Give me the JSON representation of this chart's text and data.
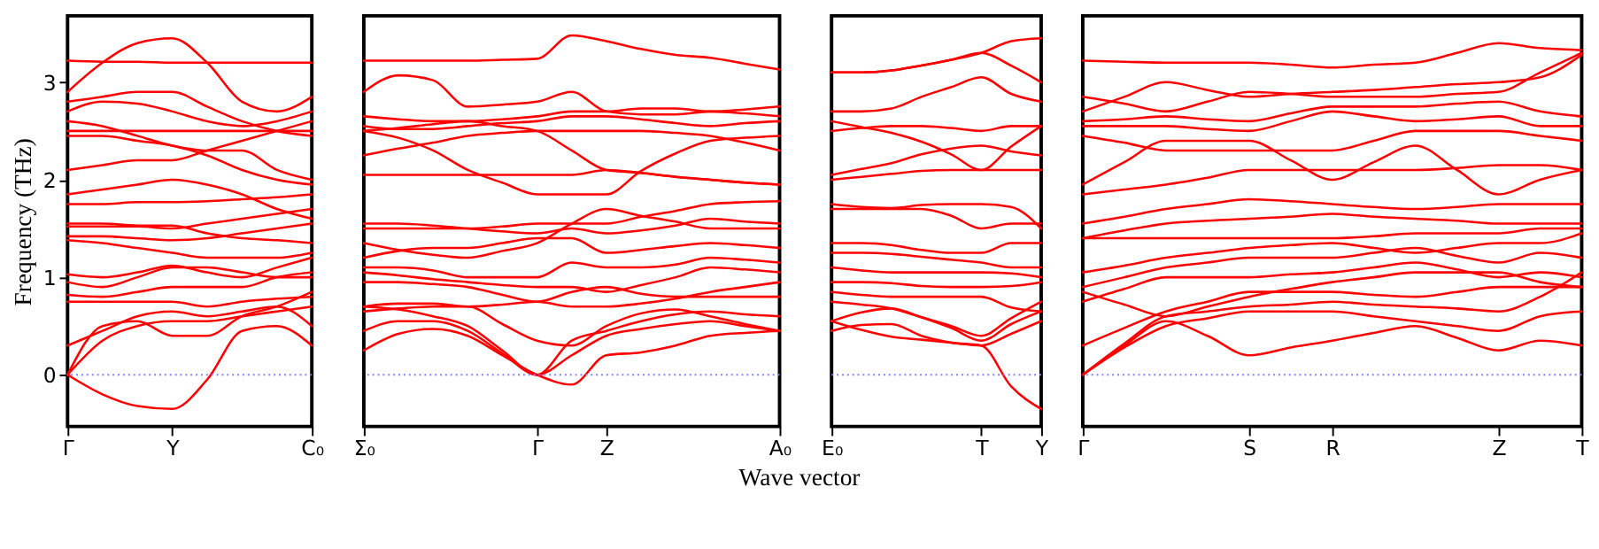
{
  "chart_data": [
    {
      "type": "line",
      "ylabel": "Frequency (THz)",
      "ylim": [
        -0.53,
        3.68
      ],
      "yticks": [
        0,
        1,
        2,
        3
      ],
      "categories": [
        "Γ",
        null,
        null,
        "Y",
        null,
        null,
        null,
        "C₀"
      ],
      "ref_lines": [
        {
          "axis": "y",
          "value": 0,
          "color": "#7f7fff",
          "line_style": "dotted"
        }
      ],
      "series": [
        {
          "color": "#ff0000",
          "values": [
            0,
            -0.2,
            -0.32,
            -0.35,
            -0.05,
            0.45,
            0.5,
            0.3
          ]
        },
        {
          "color": "#ff0000",
          "values": [
            0,
            0.5,
            0.55,
            0.4,
            0.4,
            0.6,
            0.7,
            0.85
          ]
        },
        {
          "color": "#ff0000",
          "values": [
            0,
            0.35,
            0.5,
            0.55,
            0.55,
            0.6,
            0.65,
            0.7
          ]
        },
        {
          "color": "#ff0000",
          "values": [
            0.3,
            0.45,
            0.6,
            0.65,
            0.6,
            0.65,
            0.7,
            0.5
          ]
        },
        {
          "color": "#ff0000",
          "values": [
            0.75,
            0.75,
            0.75,
            0.75,
            0.7,
            0.75,
            0.78,
            0.8
          ]
        },
        {
          "color": "#ff0000",
          "values": [
            0.82,
            0.8,
            0.85,
            0.9,
            0.9,
            0.9,
            1.0,
            1.05
          ]
        },
        {
          "color": "#ff0000",
          "values": [
            0.95,
            0.9,
            1.0,
            1.1,
            1.1,
            1.05,
            1.0,
            1.0
          ]
        },
        {
          "color": "#ff0000",
          "values": [
            1.03,
            1.0,
            1.05,
            1.12,
            1.05,
            1.0,
            1.1,
            1.2
          ]
        },
        {
          "color": "#ff0000",
          "values": [
            1.38,
            1.35,
            1.3,
            1.25,
            1.2,
            1.2,
            1.2,
            1.25
          ]
        },
        {
          "color": "#ff0000",
          "values": [
            1.42,
            1.42,
            1.4,
            1.38,
            1.4,
            1.45,
            1.5,
            1.55
          ]
        },
        {
          "color": "#ff0000",
          "values": [
            1.52,
            1.52,
            1.52,
            1.5,
            1.55,
            1.6,
            1.65,
            1.7
          ]
        },
        {
          "color": "#ff0000",
          "values": [
            1.55,
            1.55,
            1.53,
            1.53,
            1.45,
            1.4,
            1.38,
            1.35
          ]
        },
        {
          "color": "#ff0000",
          "values": [
            1.75,
            1.75,
            1.77,
            1.77,
            1.78,
            1.8,
            1.82,
            1.85
          ]
        },
        {
          "color": "#ff0000",
          "values": [
            1.85,
            1.9,
            1.95,
            2.0,
            1.95,
            1.85,
            1.7,
            1.6
          ]
        },
        {
          "color": "#ff0000",
          "values": [
            2.1,
            2.15,
            2.2,
            2.2,
            2.3,
            2.4,
            2.5,
            2.6
          ]
        },
        {
          "color": "#ff0000",
          "values": [
            2.45,
            2.45,
            2.4,
            2.35,
            2.25,
            2.1,
            2.0,
            1.95
          ]
        },
        {
          "color": "#ff0000",
          "values": [
            2.5,
            2.5,
            2.5,
            2.5,
            2.5,
            2.5,
            2.5,
            2.5
          ]
        },
        {
          "color": "#ff0000",
          "values": [
            2.6,
            2.55,
            2.45,
            2.35,
            2.3,
            2.3,
            2.1,
            2.0
          ]
        },
        {
          "color": "#ff0000",
          "values": [
            2.7,
            2.8,
            2.78,
            2.7,
            2.6,
            2.55,
            2.6,
            2.7
          ]
        },
        {
          "color": "#ff0000",
          "values": [
            2.8,
            2.85,
            2.9,
            2.9,
            2.75,
            2.6,
            2.5,
            2.45
          ]
        },
        {
          "color": "#ff0000",
          "values": [
            2.9,
            3.2,
            3.4,
            3.45,
            3.2,
            2.8,
            2.7,
            2.85
          ]
        },
        {
          "color": "#ff0000",
          "values": [
            3.22,
            3.21,
            3.21,
            3.2,
            3.2,
            3.2,
            3.2,
            3.2
          ]
        }
      ]
    },
    {
      "type": "line",
      "tick_labels": "x",
      "ylim": [
        -0.53,
        3.68
      ],
      "yticks": [
        0,
        1,
        2,
        3
      ],
      "categories": [
        "Σ₀",
        null,
        null,
        null,
        null,
        "Γ",
        null,
        "Z",
        null,
        null,
        null,
        null,
        "A₀"
      ],
      "ref_lines": [
        {
          "axis": "y",
          "value": 0,
          "color": "#7f7fff",
          "line_style": "dotted"
        }
      ],
      "series": [
        {
          "color": "#ff0000",
          "values": [
            0.25,
            0.42,
            0.47,
            0.4,
            0.2,
            0,
            -0.1,
            0.2,
            0.23,
            0.3,
            0.4,
            0.43,
            0.45
          ]
        },
        {
          "color": "#ff0000",
          "values": [
            0.45,
            0.55,
            0.55,
            0.45,
            0.22,
            0,
            0.2,
            0.4,
            0.47,
            0.52,
            0.55,
            0.5,
            0.45
          ]
        },
        {
          "color": "#ff0000",
          "values": [
            0.7,
            0.67,
            0.6,
            0.5,
            0.25,
            0,
            0.35,
            0.45,
            0.55,
            0.62,
            0.65,
            0.62,
            0.6
          ]
        },
        {
          "color": "#ff0000",
          "values": [
            0.65,
            0.68,
            0.7,
            0.7,
            0.52,
            0.35,
            0.3,
            0.5,
            0.63,
            0.67,
            0.6,
            0.52,
            0.45
          ]
        },
        {
          "color": "#ff0000",
          "values": [
            0.7,
            0.73,
            0.73,
            0.7,
            0.72,
            0.75,
            0.7,
            0.7,
            0.73,
            0.78,
            0.85,
            0.9,
            0.95
          ]
        },
        {
          "color": "#ff0000",
          "values": [
            0.95,
            0.95,
            0.93,
            0.9,
            0.82,
            0.75,
            0.85,
            0.9,
            0.83,
            0.8,
            0.8,
            0.8,
            0.8
          ]
        },
        {
          "color": "#ff0000",
          "values": [
            1.05,
            1.02,
            0.98,
            0.95,
            0.92,
            0.9,
            0.9,
            0.85,
            0.92,
            1.0,
            1.1,
            1.08,
            1.05
          ]
        },
        {
          "color": "#ff0000",
          "values": [
            1.1,
            1.1,
            1.07,
            1.0,
            1.0,
            1.0,
            1.15,
            1.1,
            1.1,
            1.13,
            1.2,
            1.18,
            1.15
          ]
        },
        {
          "color": "#ff0000",
          "values": [
            1.2,
            1.27,
            1.3,
            1.3,
            1.35,
            1.4,
            1.4,
            1.25,
            1.28,
            1.32,
            1.35,
            1.33,
            1.3
          ]
        },
        {
          "color": "#ff0000",
          "values": [
            1.35,
            1.28,
            1.23,
            1.2,
            1.27,
            1.35,
            1.55,
            1.7,
            1.63,
            1.57,
            1.5,
            1.5,
            1.5
          ]
        },
        {
          "color": "#ff0000",
          "values": [
            1.5,
            1.5,
            1.5,
            1.5,
            1.52,
            1.55,
            1.55,
            1.55,
            1.62,
            1.68,
            1.75,
            1.77,
            1.78
          ]
        },
        {
          "color": "#ff0000",
          "values": [
            1.55,
            1.55,
            1.53,
            1.5,
            1.47,
            1.45,
            1.5,
            1.45,
            1.48,
            1.53,
            1.6,
            1.57,
            1.55
          ]
        },
        {
          "color": "#ff0000",
          "values": [
            2.05,
            2.05,
            2.05,
            2.05,
            2.05,
            2.05,
            2.05,
            2.1,
            2.07,
            2.03,
            2.0,
            1.97,
            1.95
          ]
        },
        {
          "color": "#ff0000",
          "values": [
            2.5,
            2.43,
            2.3,
            2.1,
            1.97,
            1.85,
            1.85,
            1.85,
            2.09,
            2.27,
            2.4,
            2.43,
            2.45
          ]
        },
        {
          "color": "#ff0000",
          "values": [
            2.25,
            2.32,
            2.38,
            2.45,
            2.48,
            2.5,
            2.5,
            2.5,
            2.5,
            2.48,
            2.45,
            2.38,
            2.3
          ]
        },
        {
          "color": "#ff0000",
          "values": [
            2.5,
            2.53,
            2.57,
            2.6,
            2.55,
            2.5,
            2.3,
            2.1,
            2.07,
            2.03,
            2.0,
            1.97,
            1.95
          ]
        },
        {
          "color": "#ff0000",
          "values": [
            2.55,
            2.52,
            2.52,
            2.55,
            2.58,
            2.6,
            2.65,
            2.65,
            2.62,
            2.58,
            2.55,
            2.58,
            2.6
          ]
        },
        {
          "color": "#ff0000",
          "values": [
            2.65,
            2.62,
            2.6,
            2.6,
            2.62,
            2.65,
            2.7,
            2.7,
            2.73,
            2.73,
            2.7,
            2.72,
            2.75
          ]
        },
        {
          "color": "#ff0000",
          "values": [
            2.9,
            3.07,
            3.02,
            2.75,
            2.77,
            2.8,
            2.9,
            2.7,
            2.67,
            2.67,
            2.7,
            2.68,
            2.65
          ]
        },
        {
          "color": "#ff0000",
          "values": [
            3.22,
            3.22,
            3.22,
            3.22,
            3.23,
            3.24,
            3.48,
            3.42,
            3.34,
            3.28,
            3.25,
            3.19,
            3.13
          ]
        }
      ]
    },
    {
      "type": "line",
      "tick_labels": "x",
      "ylim": [
        -0.53,
        3.68
      ],
      "yticks": [
        0,
        1,
        2,
        3
      ],
      "categories": [
        "E₀",
        null,
        null,
        null,
        null,
        "T",
        null,
        "Y"
      ],
      "xlabel": "Wave vector",
      "ref_lines": [
        {
          "axis": "y",
          "value": 0,
          "color": "#7f7fff",
          "line_style": "dotted"
        }
      ],
      "series": [
        {
          "color": "#ff0000",
          "values": [
            0.45,
            0.51,
            0.52,
            0.4,
            0.33,
            0.3,
            -0.12,
            -0.35
          ]
        },
        {
          "color": "#ff0000",
          "values": [
            0.55,
            0.46,
            0.39,
            0.36,
            0.33,
            0.3,
            0.42,
            0.55
          ]
        },
        {
          "color": "#ff0000",
          "values": [
            0.55,
            0.64,
            0.68,
            0.59,
            0.48,
            0.35,
            0.52,
            0.65
          ]
        },
        {
          "color": "#ff0000",
          "values": [
            0.75,
            0.72,
            0.68,
            0.59,
            0.5,
            0.4,
            0.58,
            0.75
          ]
        },
        {
          "color": "#ff0000",
          "values": [
            0.85,
            0.82,
            0.8,
            0.8,
            0.8,
            0.8,
            0.69,
            0.65
          ]
        },
        {
          "color": "#ff0000",
          "values": [
            0.95,
            0.95,
            0.94,
            0.91,
            0.9,
            0.9,
            0.91,
            0.95
          ]
        },
        {
          "color": "#ff0000",
          "values": [
            1.1,
            1.07,
            1.05,
            1.05,
            1.05,
            1.05,
            1.04,
            1.0
          ]
        },
        {
          "color": "#ff0000",
          "values": [
            1.25,
            1.25,
            1.24,
            1.21,
            1.18,
            1.15,
            1.1,
            1.1
          ]
        },
        {
          "color": "#ff0000",
          "values": [
            1.35,
            1.35,
            1.33,
            1.28,
            1.25,
            1.25,
            1.35,
            1.35
          ]
        },
        {
          "color": "#ff0000",
          "values": [
            1.7,
            1.7,
            1.7,
            1.7,
            1.63,
            1.5,
            1.55,
            1.55
          ]
        },
        {
          "color": "#ff0000",
          "values": [
            1.75,
            1.72,
            1.71,
            1.74,
            1.75,
            1.75,
            1.72,
            1.5
          ]
        },
        {
          "color": "#ff0000",
          "values": [
            2.0,
            2.03,
            2.06,
            2.09,
            2.1,
            2.1,
            2.1,
            2.1
          ]
        },
        {
          "color": "#ff0000",
          "values": [
            2.05,
            2.11,
            2.17,
            2.26,
            2.32,
            2.35,
            2.29,
            2.25
          ]
        },
        {
          "color": "#ff0000",
          "values": [
            2.6,
            2.54,
            2.48,
            2.39,
            2.26,
            2.1,
            2.34,
            2.55
          ]
        },
        {
          "color": "#ff0000",
          "values": [
            2.5,
            2.53,
            2.55,
            2.55,
            2.53,
            2.5,
            2.55,
            2.55
          ]
        },
        {
          "color": "#ff0000",
          "values": [
            2.7,
            2.7,
            2.73,
            2.85,
            2.95,
            3.05,
            2.88,
            2.8
          ]
        },
        {
          "color": "#ff0000",
          "values": [
            3.1,
            3.1,
            3.12,
            3.17,
            3.23,
            3.3,
            3.42,
            3.45
          ]
        },
        {
          "color": "#ff0000",
          "values": [
            3.1,
            3.1,
            3.12,
            3.17,
            3.23,
            3.3,
            3.17,
            3.0
          ]
        }
      ]
    },
    {
      "type": "line",
      "tick_labels": "x",
      "ylim": [
        -0.53,
        3.68
      ],
      "yticks": [
        0,
        1,
        2,
        3
      ],
      "categories": [
        "Γ",
        null,
        null,
        null,
        "S",
        null,
        "R",
        null,
        null,
        null,
        "Z",
        null,
        "T"
      ],
      "ref_lines": [
        {
          "axis": "y",
          "value": 0,
          "color": "#7f7fff",
          "line_style": "dotted"
        }
      ],
      "series": [
        {
          "color": "#ff0000",
          "values": [
            0,
            0.3,
            0.55,
            0.4,
            0.2,
            0.28,
            0.35,
            0.43,
            0.5,
            0.38,
            0.25,
            0.35,
            0.3
          ]
        },
        {
          "color": "#ff0000",
          "values": [
            0,
            0.28,
            0.5,
            0.58,
            0.65,
            0.65,
            0.65,
            0.6,
            0.55,
            0.5,
            0.45,
            0.6,
            0.65
          ]
        },
        {
          "color": "#ff0000",
          "values": [
            0,
            0.32,
            0.6,
            0.65,
            0.7,
            0.72,
            0.75,
            0.72,
            0.7,
            0.68,
            0.65,
            0.8,
            1.05
          ]
        },
        {
          "color": "#ff0000",
          "values": [
            0.3,
            0.48,
            0.65,
            0.75,
            0.85,
            0.85,
            0.85,
            0.82,
            0.8,
            0.85,
            0.9,
            0.9,
            0.9
          ]
        },
        {
          "color": "#ff0000",
          "values": [
            0.85,
            0.72,
            0.6,
            0.7,
            0.8,
            0.88,
            0.95,
            1.0,
            1.05,
            1.05,
            1.05,
            0.95,
            0.9
          ]
        },
        {
          "color": "#ff0000",
          "values": [
            0.75,
            0.88,
            1.0,
            1.0,
            1.0,
            1.03,
            1.05,
            1.1,
            1.15,
            1.08,
            1.0,
            1.05,
            1.0
          ]
        },
        {
          "color": "#ff0000",
          "values": [
            0.9,
            1.0,
            1.1,
            1.15,
            1.2,
            1.2,
            1.2,
            1.25,
            1.3,
            1.22,
            1.15,
            1.25,
            1.2
          ]
        },
        {
          "color": "#ff0000",
          "values": [
            1.05,
            1.12,
            1.2,
            1.25,
            1.3,
            1.33,
            1.35,
            1.3,
            1.25,
            1.3,
            1.35,
            1.35,
            1.45
          ]
        },
        {
          "color": "#ff0000",
          "values": [
            1.4,
            1.4,
            1.4,
            1.4,
            1.4,
            1.4,
            1.4,
            1.42,
            1.45,
            1.45,
            1.45,
            1.5,
            1.5
          ]
        },
        {
          "color": "#ff0000",
          "values": [
            1.4,
            1.48,
            1.55,
            1.58,
            1.6,
            1.62,
            1.65,
            1.62,
            1.6,
            1.58,
            1.55,
            1.55,
            1.55
          ]
        },
        {
          "color": "#ff0000",
          "values": [
            1.55,
            1.62,
            1.7,
            1.75,
            1.8,
            1.78,
            1.75,
            1.72,
            1.7,
            1.72,
            1.75,
            1.75,
            1.75
          ]
        },
        {
          "color": "#ff0000",
          "values": [
            1.85,
            1.9,
            1.95,
            2.02,
            2.1,
            2.1,
            2.1,
            2.1,
            2.1,
            2.12,
            2.15,
            2.15,
            2.1
          ]
        },
        {
          "color": "#ff0000",
          "values": [
            1.95,
            2.18,
            2.4,
            2.4,
            2.4,
            2.2,
            2.0,
            2.18,
            2.35,
            2.1,
            1.85,
            2.0,
            2.1
          ]
        },
        {
          "color": "#ff0000",
          "values": [
            2.45,
            2.38,
            2.3,
            2.3,
            2.3,
            2.3,
            2.3,
            2.4,
            2.5,
            2.5,
            2.5,
            2.45,
            2.4
          ]
        },
        {
          "color": "#ff0000",
          "values": [
            2.55,
            2.55,
            2.55,
            2.52,
            2.5,
            2.6,
            2.7,
            2.65,
            2.6,
            2.62,
            2.65,
            2.55,
            2.55
          ]
        },
        {
          "color": "#ff0000",
          "values": [
            2.6,
            2.62,
            2.65,
            2.62,
            2.6,
            2.68,
            2.75,
            2.75,
            2.75,
            2.78,
            2.8,
            2.7,
            2.65
          ]
        },
        {
          "color": "#ff0000",
          "values": [
            2.85,
            2.78,
            2.7,
            2.8,
            2.9,
            2.88,
            2.85,
            2.85,
            2.85,
            2.88,
            2.9,
            3.1,
            3.3
          ]
        },
        {
          "color": "#ff0000",
          "values": [
            2.7,
            2.85,
            3.0,
            2.92,
            2.85,
            2.88,
            2.9,
            2.92,
            2.95,
            2.98,
            3.0,
            3.05,
            3.28
          ]
        },
        {
          "color": "#ff0000",
          "values": [
            3.22,
            3.21,
            3.2,
            3.2,
            3.2,
            3.18,
            3.15,
            3.18,
            3.2,
            3.3,
            3.4,
            3.35,
            3.33
          ]
        }
      ]
    }
  ]
}
